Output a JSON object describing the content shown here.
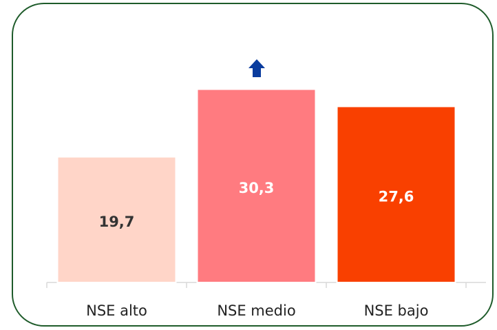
{
  "chart_data": {
    "type": "bar",
    "categories": [
      "NSE alto",
      "NSE medio",
      "NSE bajo"
    ],
    "values": [
      19.7,
      30.3,
      27.6
    ],
    "value_labels": [
      "19,7",
      "30,3",
      "27,6"
    ],
    "colors": [
      "#ffd5c8",
      "#ff7b80",
      "#f94000"
    ],
    "ylim": [
      0,
      35
    ]
  }
}
